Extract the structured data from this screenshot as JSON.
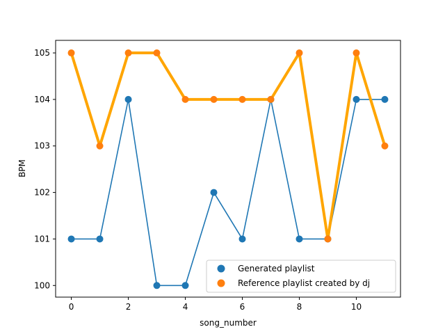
{
  "chart_data": {
    "type": "line",
    "xlabel": "song_number",
    "ylabel": "BPM",
    "xlim": [
      -0.55,
      11.55
    ],
    "ylim": [
      99.75,
      105.27
    ],
    "xticks": [
      0,
      2,
      4,
      6,
      8,
      10
    ],
    "yticks": [
      100,
      101,
      102,
      103,
      104,
      105
    ],
    "grid": false,
    "legend_position": "lower-right",
    "x": [
      0,
      1,
      2,
      3,
      4,
      5,
      6,
      7,
      8,
      9,
      10,
      11
    ],
    "series": [
      {
        "name": "Generated playlist",
        "values": [
          101,
          101,
          104,
          100,
          100,
          102,
          101,
          104,
          101,
          101,
          104,
          104
        ],
        "line_color": "#1f77b4",
        "marker_color": "#1f77b4"
      },
      {
        "name": "Reference playlist created by dj",
        "values": [
          105,
          103,
          105,
          105,
          104,
          104,
          104,
          104,
          105,
          101,
          105,
          103
        ],
        "line_color": "#ffa500",
        "marker_color": "#ff7f0e"
      }
    ]
  }
}
